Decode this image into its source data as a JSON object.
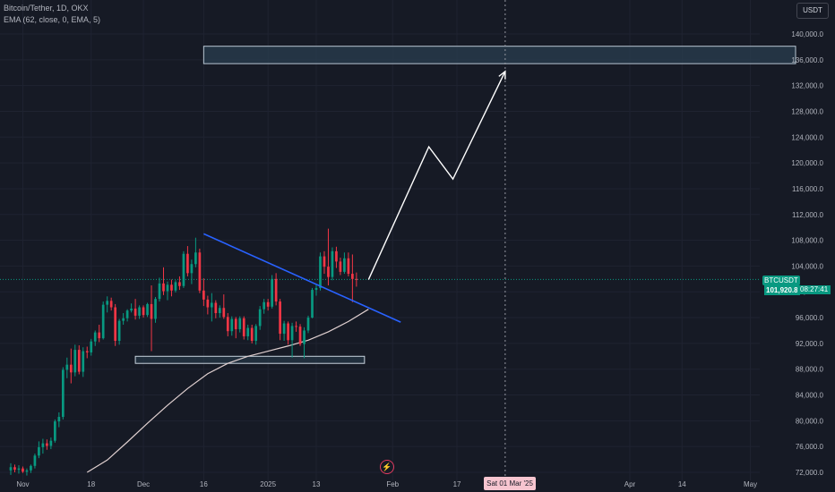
{
  "legend": {
    "symbol_line": "Bitcoin/Tether, 1D, OKX",
    "indicator_line": "EMA (62, close, 0, EMA, 5)"
  },
  "currency_button": "USDT",
  "last_price": {
    "symbol": "BTCUSDT",
    "value": "101,920.8",
    "countdown": "08:27:41"
  },
  "crosshair": {
    "date_label": "Sat 01 Mar '25"
  },
  "colors": {
    "background": "#161a25",
    "up": "#089981",
    "down": "#f23645",
    "trendline": "#2962ff",
    "ema": "#e0d0d0",
    "projection": "#ffffff",
    "zone": "#2a3d4f"
  },
  "icons": {
    "logo": "tradingview-logo-icon"
  },
  "chart_data": {
    "type": "candlestick",
    "title": "",
    "y_axis": {
      "range": [
        71000,
        142000
      ],
      "ticks": [
        "72,000.0",
        "76,000.0",
        "80,000.0",
        "84,000.0",
        "88,000.0",
        "92,000.0",
        "96,000.0",
        "100,000.0",
        "104,000.0",
        "108,000.0",
        "112,000.0",
        "116,000.0",
        "120,000.0",
        "124,000.0",
        "128,000.0",
        "132,000.0",
        "136,000.0",
        "140,000.0"
      ],
      "tick_values": [
        72000,
        76000,
        80000,
        84000,
        88000,
        92000,
        96000,
        100000,
        104000,
        108000,
        112000,
        116000,
        120000,
        124000,
        128000,
        132000,
        136000,
        140000
      ]
    },
    "x_axis": {
      "range": [
        "2024-10-29",
        "2025-05-06"
      ],
      "ticks": [
        {
          "label": "Nov",
          "date": "2024-11-01"
        },
        {
          "label": "18",
          "date": "2024-11-18"
        },
        {
          "label": "Dec",
          "date": "2024-12-01"
        },
        {
          "label": "16",
          "date": "2024-12-16"
        },
        {
          "label": "2025",
          "date": "2025-01-01"
        },
        {
          "label": "13",
          "date": "2025-01-13"
        },
        {
          "label": "Feb",
          "date": "2025-02-01"
        },
        {
          "label": "17",
          "date": "2025-02-17"
        },
        {
          "label": "Apr",
          "date": "2025-04-01"
        },
        {
          "label": "14",
          "date": "2025-04-14"
        },
        {
          "label": "May",
          "date": "2025-05-01"
        }
      ]
    },
    "candle_start_date": "2024-10-29",
    "candles": [
      [
        72300,
        73400,
        71600,
        72800
      ],
      [
        72800,
        73200,
        72000,
        72400
      ],
      [
        72400,
        73100,
        71800,
        72600
      ],
      [
        72600,
        72900,
        71900,
        72100
      ],
      [
        72100,
        72600,
        71500,
        72300
      ],
      [
        72300,
        73200,
        71900,
        73000
      ],
      [
        73000,
        74900,
        72600,
        74600
      ],
      [
        74600,
        76800,
        74200,
        75900
      ],
      [
        75900,
        77200,
        74900,
        76500
      ],
      [
        76500,
        77100,
        75500,
        76100
      ],
      [
        76100,
        77400,
        75600,
        76900
      ],
      [
        76900,
        80200,
        76600,
        79900
      ],
      [
        79900,
        81300,
        79000,
        80600
      ],
      [
        80600,
        88300,
        80200,
        87900
      ],
      [
        87900,
        89800,
        86600,
        88700
      ],
      [
        88700,
        91200,
        85800,
        87500
      ],
      [
        87500,
        91800,
        86900,
        91000
      ],
      [
        91000,
        91700,
        87200,
        87600
      ],
      [
        87600,
        91400,
        86800,
        90800
      ],
      [
        90800,
        91500,
        89700,
        90600
      ],
      [
        90600,
        92700,
        90100,
        92300
      ],
      [
        92300,
        94000,
        91600,
        93700
      ],
      [
        93700,
        94900,
        92200,
        92800
      ],
      [
        92800,
        98500,
        92600,
        98000
      ],
      [
        98000,
        99300,
        96800,
        98600
      ],
      [
        98600,
        99100,
        97100,
        97600
      ],
      [
        97600,
        98100,
        91600,
        92400
      ],
      [
        92400,
        95800,
        91800,
        95500
      ],
      [
        95500,
        96700,
        94900,
        95900
      ],
      [
        95900,
        97300,
        95400,
        97100
      ],
      [
        97100,
        98200,
        96800,
        97400
      ],
      [
        97400,
        98900,
        95700,
        96300
      ],
      [
        96300,
        97900,
        95800,
        97600
      ],
      [
        97600,
        97900,
        96000,
        96400
      ],
      [
        96400,
        98300,
        96100,
        98100
      ],
      [
        98100,
        101000,
        90800,
        95800
      ],
      [
        95800,
        99200,
        95200,
        98900
      ],
      [
        98900,
        102200,
        98500,
        101300
      ],
      [
        101300,
        103800,
        99500,
        100100
      ],
      [
        100100,
        101600,
        98700,
        101100
      ],
      [
        101100,
        101900,
        99300,
        100200
      ],
      [
        100200,
        101800,
        99900,
        101500
      ],
      [
        101500,
        102400,
        100300,
        100900
      ],
      [
        100900,
        106300,
        100600,
        105900
      ],
      [
        105900,
        107100,
        102400,
        102900
      ],
      [
        102900,
        105000,
        101200,
        104300
      ],
      [
        104300,
        108400,
        103800,
        106100
      ],
      [
        106100,
        106700,
        99800,
        100200
      ],
      [
        100200,
        102100,
        97800,
        98800
      ],
      [
        98800,
        99400,
        96500,
        97600
      ],
      [
        97600,
        99800,
        95400,
        98300
      ],
      [
        98300,
        98700,
        95900,
        96700
      ],
      [
        96700,
        97900,
        96000,
        97500
      ],
      [
        97500,
        99600,
        95800,
        96100
      ],
      [
        96100,
        96700,
        93100,
        93900
      ],
      [
        93900,
        96200,
        93200,
        95800
      ],
      [
        95800,
        96100,
        92800,
        94200
      ],
      [
        94200,
        96200,
        93700,
        95900
      ],
      [
        95900,
        96200,
        92600,
        93100
      ],
      [
        93100,
        94900,
        92500,
        94400
      ],
      [
        94400,
        94900,
        92000,
        92400
      ],
      [
        92400,
        95000,
        91800,
        94700
      ],
      [
        94700,
        97800,
        94100,
        97300
      ],
      [
        97300,
        98900,
        96600,
        98400
      ],
      [
        98400,
        98900,
        97100,
        97700
      ],
      [
        97700,
        102600,
        97400,
        102000
      ],
      [
        102000,
        102900,
        97900,
        98500
      ],
      [
        98500,
        98900,
        92500,
        93500
      ],
      [
        93500,
        95500,
        92400,
        95100
      ],
      [
        95100,
        95400,
        91800,
        92500
      ],
      [
        92500,
        95200,
        89800,
        94700
      ],
      [
        94700,
        95400,
        93800,
        94600
      ],
      [
        94600,
        95000,
        91600,
        91900
      ],
      [
        91900,
        94500,
        89700,
        94000
      ],
      [
        94000,
        96300,
        93600,
        96000
      ],
      [
        96000,
        100600,
        95900,
        100300
      ],
      [
        100300,
        101200,
        99400,
        100600
      ],
      [
        100600,
        106100,
        100200,
        105500
      ],
      [
        105500,
        106300,
        102800,
        103900
      ],
      [
        103900,
        109800,
        101000,
        102300
      ],
      [
        102300,
        106900,
        101800,
        106300
      ],
      [
        106300,
        107000,
        103700,
        104700
      ],
      [
        104700,
        105300,
        102600,
        103100
      ],
      [
        103100,
        106100,
        102800,
        105200
      ],
      [
        105200,
        106100,
        102400,
        102800
      ],
      [
        102800,
        105800,
        98400,
        102000
      ],
      [
        102000,
        103000,
        100800,
        101900
      ]
    ],
    "ema": {
      "name": "EMA (62, close, 0, EMA, 5)",
      "points": [
        [
          "2024-11-17",
          72000
        ],
        [
          "2024-11-22",
          73900
        ],
        [
          "2024-11-27",
          76700
        ],
        [
          "2024-12-02",
          79600
        ],
        [
          "2024-12-07",
          82400
        ],
        [
          "2024-12-12",
          85000
        ],
        [
          "2024-12-17",
          87300
        ],
        [
          "2024-12-22",
          88900
        ],
        [
          "2024-12-27",
          90000
        ],
        [
          "2025-01-01",
          90800
        ],
        [
          "2025-01-06",
          91600
        ],
        [
          "2025-01-11",
          92500
        ],
        [
          "2025-01-16",
          93800
        ],
        [
          "2025-01-21",
          95400
        ],
        [
          "2025-01-26",
          97300
        ]
      ]
    },
    "trendline": {
      "start": [
        "2024-12-16",
        109000
      ],
      "end": [
        "2025-02-03",
        95300
      ]
    },
    "support_zone": {
      "from": [
        "2024-11-29",
        88900
      ],
      "to": [
        "2025-01-25",
        90000
      ]
    },
    "target_zone": {
      "from": [
        "2024-12-16",
        135400
      ],
      "to": [
        "2025-05-06",
        138100
      ]
    },
    "projection": {
      "points": [
        [
          "2025-01-26",
          101900
        ],
        [
          "2025-02-10",
          122500
        ],
        [
          "2025-02-16",
          117500
        ],
        [
          "2025-03-01",
          134200
        ]
      ]
    },
    "crosshair_date": "2025-03-01",
    "last_price_value": 101920.8
  }
}
